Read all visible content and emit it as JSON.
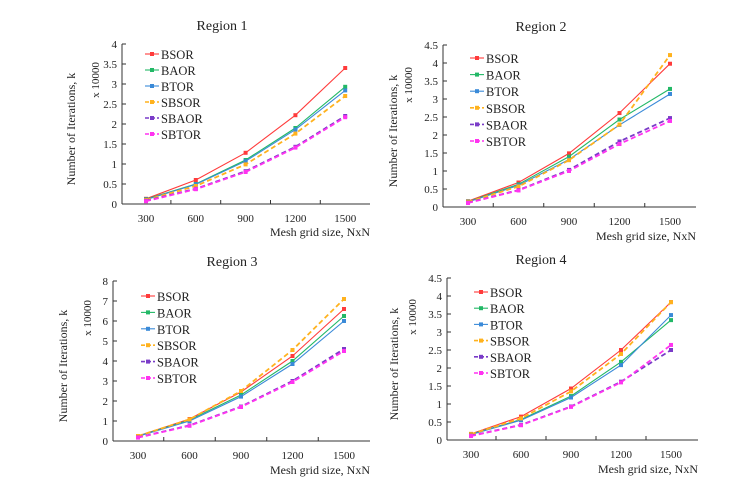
{
  "chart_data": [
    {
      "type": "line",
      "title": "Region 1",
      "xlabel": "Mesh grid size, NxN",
      "ylabel": "Number of Iterations, k",
      "yunit_label": "x 10000",
      "categories": [
        "300",
        "600",
        "900",
        "1200",
        "1500"
      ],
      "ylim": [
        0,
        4
      ],
      "yticks": [
        "0",
        "0.5",
        "1",
        "1.5",
        "2",
        "2.5",
        "3",
        "3.5",
        "4"
      ],
      "legend_position": "top-left",
      "grid": false,
      "series": [
        {
          "name": "BSOR",
          "values": [
            0.13,
            0.6,
            1.28,
            2.22,
            3.4
          ]
        },
        {
          "name": "BAOR",
          "values": [
            0.12,
            0.5,
            1.1,
            1.9,
            2.93
          ]
        },
        {
          "name": "BTOR",
          "values": [
            0.11,
            0.49,
            1.07,
            1.86,
            2.84
          ]
        },
        {
          "name": "SBSOR",
          "values": [
            0.1,
            0.45,
            0.99,
            1.76,
            2.7
          ]
        },
        {
          "name": "SBAOR",
          "values": [
            0.08,
            0.38,
            0.82,
            1.43,
            2.2
          ]
        },
        {
          "name": "SBTOR",
          "values": [
            0.07,
            0.37,
            0.8,
            1.41,
            2.17
          ]
        }
      ]
    },
    {
      "type": "line",
      "title": "Region 2",
      "xlabel": "Mesh grid size, NxN",
      "ylabel": "Number of Iterations, k",
      "yunit_label": "x 10000",
      "categories": [
        "300",
        "600",
        "900",
        "1200",
        "1500"
      ],
      "ylim": [
        0,
        4.5
      ],
      "yticks": [
        "0",
        "0.5",
        "1",
        "1.5",
        "2",
        "2.5",
        "3",
        "3.5",
        "4",
        "4.5"
      ],
      "legend_position": "top-left",
      "grid": false,
      "series": [
        {
          "name": "BSOR",
          "values": [
            0.16,
            0.68,
            1.49,
            2.61,
            3.98
          ]
        },
        {
          "name": "BAOR",
          "values": [
            0.15,
            0.63,
            1.4,
            2.43,
            3.28
          ]
        },
        {
          "name": "BTOR",
          "values": [
            0.14,
            0.6,
            1.32,
            2.28,
            3.14
          ]
        },
        {
          "name": "SBSOR",
          "values": [
            0.14,
            0.57,
            1.3,
            2.29,
            4.22
          ]
        },
        {
          "name": "SBAOR",
          "values": [
            0.12,
            0.47,
            1.03,
            1.82,
            2.47
          ]
        },
        {
          "name": "SBTOR",
          "values": [
            0.11,
            0.46,
            1.0,
            1.75,
            2.39
          ]
        }
      ]
    },
    {
      "type": "line",
      "title": "Region 3",
      "xlabel": "Mesh grid size, NxN",
      "ylabel": "Number of Iterations, k",
      "yunit_label": "x 10000",
      "categories": [
        "300",
        "600",
        "900",
        "1200",
        "1500"
      ],
      "ylim": [
        0,
        8
      ],
      "yticks": [
        "0",
        "1",
        "2",
        "3",
        "4",
        "5",
        "6",
        "7",
        "8"
      ],
      "legend_position": "top-left",
      "grid": false,
      "series": [
        {
          "name": "BSOR",
          "values": [
            0.25,
            1.1,
            2.45,
            4.25,
            6.6
          ]
        },
        {
          "name": "BAOR",
          "values": [
            0.24,
            1.05,
            2.3,
            4.0,
            6.25
          ]
        },
        {
          "name": "BTOR",
          "values": [
            0.23,
            1.0,
            2.22,
            3.85,
            6.0
          ]
        },
        {
          "name": "SBSOR",
          "values": [
            0.25,
            1.08,
            2.5,
            4.55,
            7.1
          ]
        },
        {
          "name": "SBAOR",
          "values": [
            0.18,
            0.78,
            1.72,
            3.0,
            4.6
          ]
        },
        {
          "name": "SBTOR",
          "values": [
            0.17,
            0.76,
            1.7,
            2.95,
            4.5
          ]
        }
      ]
    },
    {
      "type": "line",
      "title": "Region 4",
      "xlabel": "Mesh grid size, NxN",
      "ylabel": "Number of Iterations, k",
      "yunit_label": "x 10000",
      "categories": [
        "300",
        "600",
        "900",
        "1200",
        "1500"
      ],
      "ylim": [
        0,
        4.5
      ],
      "yticks": [
        "0",
        "0.5",
        "1",
        "1.5",
        "2",
        "2.5",
        "3",
        "3.5",
        "4",
        "4.5"
      ],
      "legend_position": "top-left",
      "grid": false,
      "series": [
        {
          "name": "BSOR",
          "values": [
            0.17,
            0.65,
            1.43,
            2.5,
            3.83
          ]
        },
        {
          "name": "BAOR",
          "values": [
            0.16,
            0.57,
            1.22,
            2.17,
            3.33
          ]
        },
        {
          "name": "BTOR",
          "values": [
            0.15,
            0.55,
            1.18,
            2.08,
            3.47
          ]
        },
        {
          "name": "SBSOR",
          "values": [
            0.16,
            0.6,
            1.35,
            2.39,
            3.83
          ]
        },
        {
          "name": "SBAOR",
          "values": [
            0.12,
            0.42,
            0.93,
            1.62,
            2.5
          ]
        },
        {
          "name": "SBTOR",
          "values": [
            0.11,
            0.41,
            0.92,
            1.6,
            2.64
          ]
        }
      ]
    }
  ],
  "series_styles": {
    "BSOR": {
      "color": "#ff3b3b",
      "dashed": false
    },
    "BAOR": {
      "color": "#22b866",
      "dashed": false
    },
    "BTOR": {
      "color": "#3a8ad8",
      "dashed": false
    },
    "SBSOR": {
      "color": "#ffb21e",
      "dashed": true
    },
    "SBAOR": {
      "color": "#7a3bc8",
      "dashed": true
    },
    "SBTOR": {
      "color": "#ff33f0",
      "dashed": true
    }
  }
}
